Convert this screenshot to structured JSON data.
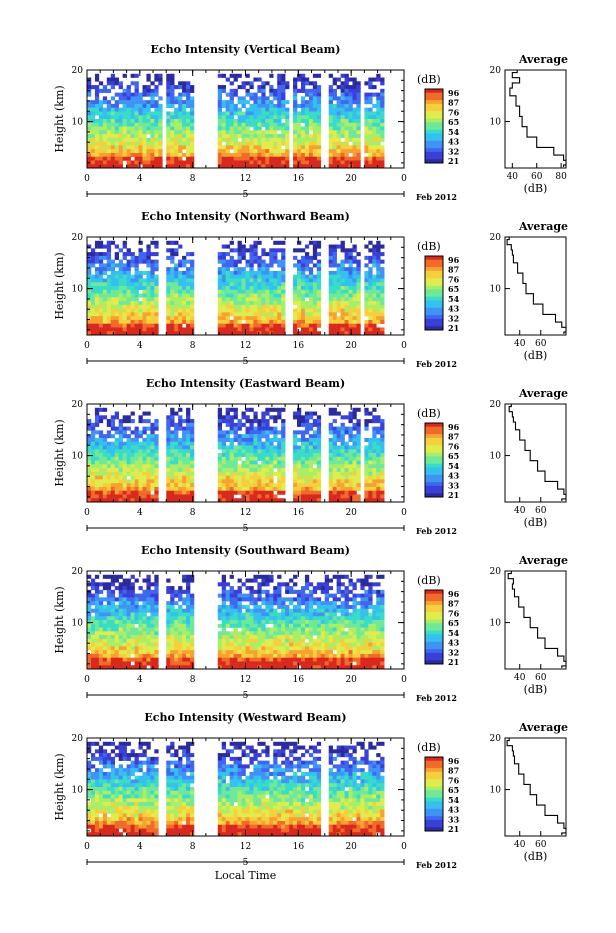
{
  "figure": {
    "x_axis_label": "Local Time",
    "date_label": "Feb 2012",
    "date_marker": "5",
    "average_title": "Average",
    "unit_label": "(dB)",
    "y_axis_label": "Height (km)"
  },
  "chart_data": [
    {
      "type": "heatmap",
      "title": "Echo Intensity (Vertical Beam)",
      "ylabel": "Height (km)",
      "xlabel": "",
      "x_ticks": [
        "0",
        "4",
        "8",
        "12",
        "16",
        "20",
        "0"
      ],
      "x_range_hours": [
        0,
        24
      ],
      "y_ticks": [
        "20",
        "10"
      ],
      "y_range_km": [
        1,
        20
      ],
      "colorbar": {
        "unit": "(dB)",
        "labels": [
          "96",
          "87",
          "76",
          "65",
          "54",
          "43",
          "32",
          "21"
        ]
      },
      "data_gaps_hours": [
        [
          5.7,
          6.0
        ],
        [
          8.0,
          10.0
        ],
        [
          15.2,
          15.7
        ],
        [
          17.8,
          18.2
        ],
        [
          20.6,
          21.0
        ]
      ],
      "average_profile": {
        "title": "Average",
        "xlabel": "(dB)",
        "x_ticks": [
          "40",
          "60",
          "80"
        ],
        "x_range": [
          34,
          84
        ],
        "heights_km": [
          20,
          19,
          18,
          17,
          16,
          14,
          12,
          10,
          8,
          6,
          4,
          3,
          2,
          1.2
        ],
        "values_db": [
          44,
          40,
          46,
          40,
          38,
          43,
          46,
          48,
          52,
          60,
          74,
          82,
          84,
          82
        ]
      }
    },
    {
      "type": "heatmap",
      "title": "Echo Intensity (Northward Beam)",
      "ylabel": "Height (km)",
      "xlabel": "",
      "x_ticks": [
        "0",
        "4",
        "8",
        "12",
        "16",
        "20",
        "0"
      ],
      "x_range_hours": [
        0,
        24
      ],
      "y_ticks": [
        "20",
        "10"
      ],
      "y_range_km": [
        1,
        20
      ],
      "colorbar": {
        "unit": "(dB)",
        "labels": [
          "96",
          "87",
          "76",
          "65",
          "54",
          "43",
          "32",
          "21"
        ]
      },
      "data_gaps_hours": [
        [
          5.5,
          6.0
        ],
        [
          8.0,
          10.0
        ],
        [
          15.1,
          15.6
        ],
        [
          17.8,
          18.2
        ],
        [
          20.6,
          21.0
        ]
      ],
      "average_profile": {
        "title": "Average",
        "xlabel": "(dB)",
        "x_ticks": [
          "40",
          "60"
        ],
        "x_range": [
          26,
          84
        ],
        "heights_km": [
          20,
          19,
          18,
          17,
          16,
          14,
          12,
          10,
          8,
          6,
          4,
          3,
          2,
          1.2
        ],
        "values_db": [
          30,
          28,
          32,
          33,
          34,
          38,
          43,
          46,
          53,
          62,
          74,
          80,
          84,
          82
        ]
      }
    },
    {
      "type": "heatmap",
      "title": "Echo Intensity (Eastward Beam)",
      "ylabel": "Height (km)",
      "xlabel": "",
      "x_ticks": [
        "0",
        "4",
        "8",
        "12",
        "16",
        "20",
        "0"
      ],
      "x_range_hours": [
        0,
        24
      ],
      "y_ticks": [
        "20",
        "10"
      ],
      "y_range_km": [
        1,
        20
      ],
      "colorbar": {
        "unit": "(dB)",
        "labels": [
          "96",
          "87",
          "76",
          "65",
          "54",
          "43",
          "33",
          "21"
        ]
      },
      "data_gaps_hours": [
        [
          5.5,
          6.0
        ],
        [
          8.0,
          10.0
        ],
        [
          15.1,
          15.6
        ],
        [
          17.8,
          18.2
        ],
        [
          20.6,
          21.0
        ]
      ],
      "average_profile": {
        "title": "Average",
        "xlabel": "(dB)",
        "x_ticks": [
          "40",
          "60"
        ],
        "x_range": [
          26,
          84
        ],
        "heights_km": [
          20,
          19,
          18,
          17,
          16,
          14,
          12,
          10,
          8,
          6,
          4,
          3,
          2,
          1.2
        ],
        "values_db": [
          32,
          30,
          33,
          34,
          36,
          40,
          45,
          50,
          57,
          64,
          76,
          82,
          84,
          80
        ]
      }
    },
    {
      "type": "heatmap",
      "title": "Echo Intensity (Southward Beam)",
      "ylabel": "Height (km)",
      "xlabel": "",
      "x_ticks": [
        "0",
        "4",
        "8",
        "12",
        "16",
        "20",
        "0"
      ],
      "x_range_hours": [
        0,
        24
      ],
      "y_ticks": [
        "20",
        "10"
      ],
      "y_range_km": [
        1,
        20
      ],
      "colorbar": {
        "unit": "(dB)",
        "labels": [
          "96",
          "87",
          "76",
          "65",
          "54",
          "43",
          "32",
          "21"
        ]
      },
      "data_gaps_hours": [
        [
          5.5,
          6.0
        ],
        [
          8.0,
          10.0
        ]
      ],
      "average_profile": {
        "title": "Average",
        "xlabel": "(dB)",
        "x_ticks": [
          "40",
          "60"
        ],
        "x_range": [
          26,
          84
        ],
        "heights_km": [
          20,
          19,
          18,
          17,
          16,
          14,
          12,
          10,
          8,
          6,
          4,
          3,
          2,
          1.2
        ],
        "values_db": [
          32,
          29,
          34,
          33,
          35,
          39,
          44,
          50,
          57,
          64,
          76,
          82,
          84,
          80
        ]
      }
    },
    {
      "type": "heatmap",
      "title": "Echo Intensity (Westward Beam)",
      "ylabel": "Height (km)",
      "xlabel": "Local Time",
      "x_ticks": [
        "0",
        "4",
        "8",
        "12",
        "16",
        "20",
        "0"
      ],
      "x_range_hours": [
        0,
        24
      ],
      "y_ticks": [
        "20",
        "10"
      ],
      "y_range_km": [
        1,
        20
      ],
      "colorbar": {
        "unit": "(dB)",
        "labels": [
          "96",
          "87",
          "76",
          "65",
          "54",
          "43",
          "33",
          "21"
        ]
      },
      "data_gaps_hours": [
        [
          5.5,
          6.0
        ],
        [
          8.0,
          10.0
        ],
        [
          17.8,
          18.2
        ]
      ],
      "average_profile": {
        "title": "Average",
        "xlabel": "(dB)",
        "x_ticks": [
          "40",
          "60"
        ],
        "x_range": [
          26,
          84
        ],
        "heights_km": [
          20,
          19,
          18,
          17,
          16,
          14,
          12,
          10,
          8,
          6,
          4,
          3,
          2,
          1.2
        ],
        "values_db": [
          30,
          28,
          33,
          34,
          35,
          39,
          44,
          50,
          56,
          64,
          76,
          82,
          84,
          80
        ]
      }
    }
  ]
}
